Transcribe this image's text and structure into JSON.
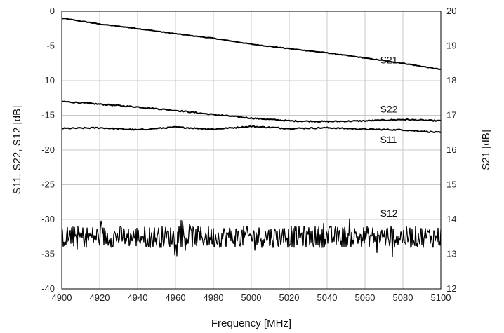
{
  "chart_data": {
    "type": "line",
    "xlabel": "Frequency [MHz]",
    "ylabel_left": "S11, S22, S12 [dB]",
    "ylabel_right": "S21 [dB]",
    "xlim": [
      4900,
      5100
    ],
    "ylim_left": [
      -40,
      0
    ],
    "ylim_right": [
      12,
      20
    ],
    "x_ticks": [
      4900,
      4920,
      4940,
      4960,
      4980,
      5000,
      5020,
      5040,
      5060,
      5080,
      5100
    ],
    "y_ticks_left": [
      0,
      -5,
      -10,
      -15,
      -20,
      -25,
      -30,
      -35,
      -40
    ],
    "y_ticks_right": [
      20,
      19,
      18,
      17,
      16,
      15,
      14,
      13,
      12
    ],
    "grid": true,
    "series": [
      {
        "name": "S21",
        "axis": "right",
        "x": [
          4900,
          4920,
          4940,
          4960,
          4980,
          5000,
          5020,
          5040,
          5060,
          5080,
          5100
        ],
        "y": [
          19.8,
          19.63,
          19.5,
          19.35,
          19.22,
          19.05,
          18.92,
          18.8,
          18.65,
          18.5,
          18.32
        ]
      },
      {
        "name": "S22",
        "axis": "left",
        "x": [
          4900,
          4920,
          4940,
          4960,
          4980,
          5000,
          5020,
          5040,
          5060,
          5080,
          5100
        ],
        "y": [
          -13.0,
          -13.4,
          -13.8,
          -14.3,
          -14.9,
          -15.4,
          -15.8,
          -15.9,
          -15.8,
          -15.6,
          -15.8
        ]
      },
      {
        "name": "S11",
        "axis": "left",
        "x": [
          4900,
          4920,
          4940,
          4960,
          4980,
          5000,
          5020,
          5040,
          5060,
          5080,
          5100
        ],
        "y": [
          -16.9,
          -16.8,
          -17.1,
          -16.7,
          -17.0,
          -16.6,
          -16.9,
          -16.8,
          -17.0,
          -17.1,
          -17.5
        ]
      },
      {
        "name": "S12",
        "axis": "left",
        "x": [
          4900,
          5100
        ],
        "y": [
          -32.5,
          -32.5
        ],
        "noise_range": [
          -35.5,
          -29.8
        ]
      }
    ]
  }
}
